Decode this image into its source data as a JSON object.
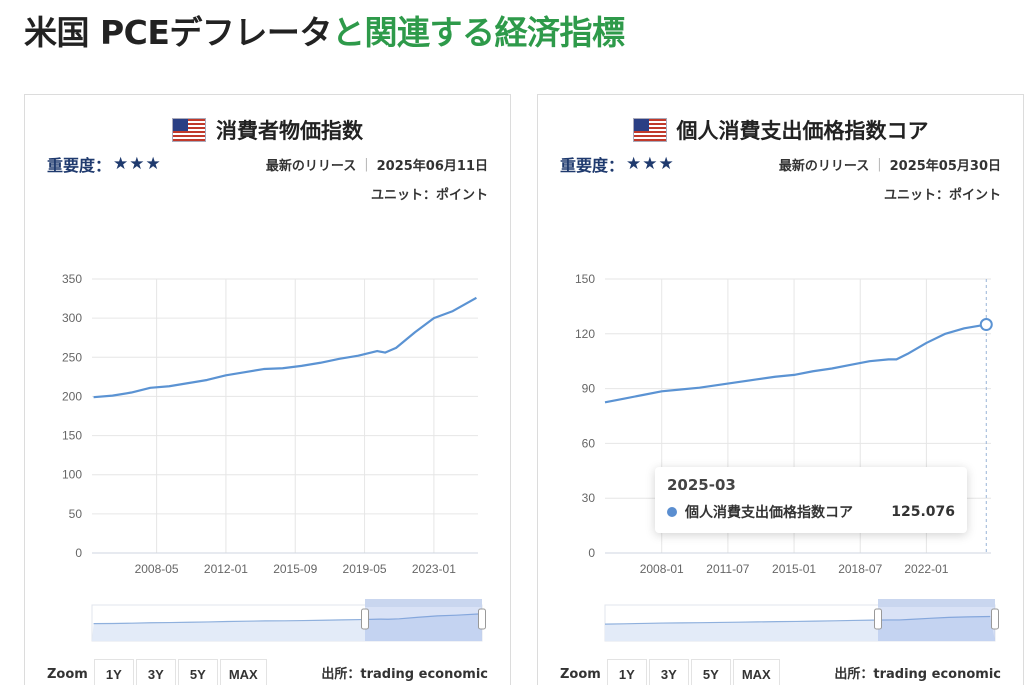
{
  "page": {
    "title_part1": "米国 PCEデフレータ",
    "title_part2": "と関連する経済指標"
  },
  "colors": {
    "accent_green": "#2e9a4a",
    "series_line": "#5b93d3",
    "navy": "#1f3a6e"
  },
  "cards": [
    {
      "title": "消費者物価指数",
      "flag_icon": "us-flag-icon",
      "importance_label": "重要度：",
      "importance_stars": "★★★",
      "release_label": "最新のリリース",
      "release_date": "2025年06月11日",
      "unit": "ユニット：ポイント",
      "source": "出所：trading economic",
      "zoom_label": "Zoom",
      "zoom_buttons": [
        "1Y",
        "3Y",
        "5Y",
        "MAX"
      ]
    },
    {
      "title": "個人消費支出価格指数コア",
      "flag_icon": "us-flag-icon",
      "importance_label": "重要度：",
      "importance_stars": "★★★",
      "release_label": "最新のリリース",
      "release_date": "2025年05月30日",
      "unit": "ユニット：ポイント",
      "source": "出所：trading economic",
      "zoom_label": "Zoom",
      "zoom_buttons": [
        "1Y",
        "3Y",
        "5Y",
        "MAX"
      ],
      "tooltip": {
        "date": "2025-03",
        "series": "個人消費支出価格指数コア",
        "value": "125.076"
      }
    }
  ],
  "chart_data": [
    {
      "type": "line",
      "title": "消費者物価指数",
      "xlabel": "",
      "ylabel": "",
      "ylim": [
        0,
        350
      ],
      "yticks": [
        0,
        50,
        100,
        150,
        200,
        250,
        300,
        350
      ],
      "xlim": [
        "2004-12",
        "2025-05"
      ],
      "xticks": [
        "2008-05",
        "2012-01",
        "2015-09",
        "2019-05",
        "2023-01"
      ],
      "grid": true,
      "x": [
        "2005-01",
        "2006-01",
        "2007-01",
        "2008-01",
        "2009-01",
        "2010-01",
        "2011-01",
        "2012-01",
        "2013-01",
        "2014-01",
        "2015-01",
        "2016-01",
        "2017-01",
        "2018-01",
        "2019-01",
        "2020-01",
        "2020-06",
        "2021-01",
        "2022-01",
        "2023-01",
        "2024-01",
        "2025-04"
      ],
      "series": [
        {
          "values": [
            199,
            201,
            205,
            211,
            213,
            217,
            221,
            227,
            231,
            235,
            236,
            239,
            243,
            248,
            252,
            258,
            256,
            262,
            282,
            300,
            309,
            326
          ]
        }
      ]
    },
    {
      "type": "line",
      "title": "個人消費支出価格指数コア",
      "xlabel": "",
      "ylabel": "",
      "ylim": [
        0,
        150
      ],
      "yticks": [
        0,
        30,
        60,
        90,
        120,
        150
      ],
      "xlim": [
        "2005-01",
        "2025-06"
      ],
      "xticks": [
        "2008-01",
        "2011-07",
        "2015-01",
        "2018-07",
        "2022-01"
      ],
      "grid": true,
      "x": [
        "2005-01",
        "2006-01",
        "2007-01",
        "2008-01",
        "2009-01",
        "2010-01",
        "2011-01",
        "2012-01",
        "2013-01",
        "2014-01",
        "2015-01",
        "2016-01",
        "2017-01",
        "2018-01",
        "2019-01",
        "2020-01",
        "2020-06",
        "2021-01",
        "2022-01",
        "2023-01",
        "2024-01",
        "2025-03"
      ],
      "series": [
        {
          "values": [
            82.5,
            84.5,
            86.5,
            88.5,
            89.5,
            90.5,
            92,
            93.5,
            95,
            96.5,
            97.5,
            99.5,
            101,
            103,
            105,
            106,
            106,
            109,
            115,
            120,
            123,
            125.076
          ]
        }
      ]
    }
  ]
}
